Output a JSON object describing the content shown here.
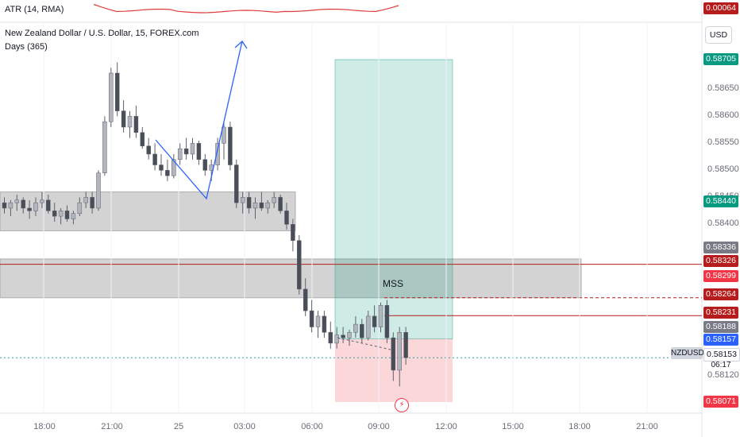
{
  "indicator": {
    "atr_label": "ATR (14, RMA)",
    "atr_value": "0.00064",
    "atr_color": "#e03e3e"
  },
  "header": {
    "symbol_title": "New Zealand Dollar / U.S. Dollar, 15, FOREX.com",
    "range_label": "Days (365)"
  },
  "currency_button": "USD",
  "annotation_mss": "MSS",
  "symbol_tag": "NZDUSD",
  "countdown": "06:17",
  "alert_icon": "lightning-icon",
  "price_axis": {
    "ticks": [
      "0.58650",
      "0.58600",
      "0.58550",
      "0.58500",
      "0.58450",
      "0.58400",
      "0.58120"
    ],
    "tags": [
      {
        "label": "0.00064",
        "bg": "#b71c1c",
        "fg": "#ffffff"
      },
      {
        "label": "0.58705",
        "bg": "#089981",
        "fg": "#ffffff"
      },
      {
        "label": "0.58440",
        "bg": "#089981",
        "fg": "#ffffff"
      },
      {
        "label": "0.58336",
        "bg": "#787b86",
        "fg": "#ffffff"
      },
      {
        "label": "0.58326",
        "bg": "#b71c1c",
        "fg": "#ffffff"
      },
      {
        "label": "0.58299",
        "bg": "#f23645",
        "fg": "#ffffff"
      },
      {
        "label": "0.58264",
        "bg": "#b71c1c",
        "fg": "#ffffff"
      },
      {
        "label": "0.58231",
        "bg": "#b71c1c",
        "fg": "#ffffff"
      },
      {
        "label": "0.58188",
        "bg": "#787b86",
        "fg": "#ffffff"
      },
      {
        "label": "0.58157",
        "bg": "#2962ff",
        "fg": "#ffffff"
      },
      {
        "label": "0.58153",
        "bg": "#ffffff",
        "fg": "#131722"
      },
      {
        "label": "0.58071",
        "bg": "#f23645",
        "fg": "#ffffff"
      }
    ]
  },
  "time_axis": [
    "18:00",
    "21:00",
    "25",
    "03:00",
    "06:00",
    "09:00",
    "12:00",
    "15:00",
    "18:00",
    "21:00"
  ],
  "chart_data": {
    "type": "candlestick",
    "symbol": "NZDUSD",
    "timeframe": "15",
    "y_range": [
      0.5805,
      0.5874
    ],
    "zones": [
      {
        "from": 0.58388,
        "to": 0.5846,
        "color": "#9e9e9e"
      },
      {
        "from": 0.58264,
        "to": 0.58336,
        "color": "#9e9e9e"
      }
    ],
    "position": {
      "entry": 0.58188,
      "target": 0.58705,
      "stop": 0.58071
    },
    "levels": [
      {
        "price": 0.58326,
        "style": "solid",
        "color": "#b71c1c"
      },
      {
        "price": 0.58264,
        "style": "dashed",
        "color": "#b71c1c"
      },
      {
        "price": 0.58231,
        "style": "solid",
        "color": "#b71c1c"
      },
      {
        "price": 0.58153,
        "style": "dotted",
        "color": "#26a69a"
      }
    ],
    "candles": [
      [
        0.5844,
        0.5845,
        0.5842,
        0.5843
      ],
      [
        0.5843,
        0.58445,
        0.58415,
        0.5844
      ],
      [
        0.5844,
        0.58455,
        0.58425,
        0.58445
      ],
      [
        0.58445,
        0.5845,
        0.5842,
        0.5843
      ],
      [
        0.5843,
        0.58445,
        0.5841,
        0.58425
      ],
      [
        0.58425,
        0.5845,
        0.58415,
        0.5844
      ],
      [
        0.5844,
        0.5846,
        0.5843,
        0.58445
      ],
      [
        0.58445,
        0.58455,
        0.5842,
        0.58425
      ],
      [
        0.58425,
        0.5844,
        0.58405,
        0.58415
      ],
      [
        0.58415,
        0.5843,
        0.584,
        0.58425
      ],
      [
        0.58425,
        0.58435,
        0.58405,
        0.5841
      ],
      [
        0.5841,
        0.58425,
        0.584,
        0.5842
      ],
      [
        0.5842,
        0.5845,
        0.58415,
        0.5844
      ],
      [
        0.5844,
        0.5846,
        0.5843,
        0.5845
      ],
      [
        0.5845,
        0.5846,
        0.5842,
        0.5843
      ],
      [
        0.5843,
        0.585,
        0.58425,
        0.58495
      ],
      [
        0.58495,
        0.586,
        0.5849,
        0.5859
      ],
      [
        0.5859,
        0.5869,
        0.5858,
        0.5868
      ],
      [
        0.5868,
        0.587,
        0.586,
        0.5861
      ],
      [
        0.5861,
        0.5863,
        0.5857,
        0.5858
      ],
      [
        0.5858,
        0.5861,
        0.5856,
        0.586
      ],
      [
        0.586,
        0.5862,
        0.5856,
        0.5857
      ],
      [
        0.5857,
        0.5858,
        0.5854,
        0.58545
      ],
      [
        0.58545,
        0.5856,
        0.5852,
        0.5853
      ],
      [
        0.5853,
        0.5855,
        0.585,
        0.5851
      ],
      [
        0.5851,
        0.5853,
        0.5849,
        0.585
      ],
      [
        0.585,
        0.5852,
        0.5848,
        0.5849
      ],
      [
        0.5849,
        0.5853,
        0.58485,
        0.5852
      ],
      [
        0.5852,
        0.5855,
        0.5851,
        0.5854
      ],
      [
        0.5854,
        0.5856,
        0.5852,
        0.5853
      ],
      [
        0.5853,
        0.5856,
        0.5852,
        0.5855
      ],
      [
        0.5855,
        0.58555,
        0.5851,
        0.5852
      ],
      [
        0.5852,
        0.5853,
        0.5849,
        0.585
      ],
      [
        0.585,
        0.5852,
        0.5848,
        0.5851
      ],
      [
        0.5851,
        0.5856,
        0.585,
        0.5855
      ],
      [
        0.5855,
        0.5859,
        0.5852,
        0.5858
      ],
      [
        0.5858,
        0.5859,
        0.585,
        0.5851
      ],
      [
        0.5851,
        0.5852,
        0.5843,
        0.5844
      ],
      [
        0.5844,
        0.5846,
        0.5842,
        0.5845
      ],
      [
        0.5845,
        0.5846,
        0.5842,
        0.5843
      ],
      [
        0.5843,
        0.5845,
        0.5841,
        0.5844
      ],
      [
        0.5844,
        0.5846,
        0.58425,
        0.5843
      ],
      [
        0.5843,
        0.58445,
        0.5842,
        0.5844
      ],
      [
        0.5844,
        0.5846,
        0.5843,
        0.5845
      ],
      [
        0.5845,
        0.58455,
        0.5842,
        0.58425
      ],
      [
        0.58425,
        0.5844,
        0.5839,
        0.584
      ],
      [
        0.584,
        0.5841,
        0.5835,
        0.5837
      ],
      [
        0.5837,
        0.5838,
        0.5827,
        0.5828
      ],
      [
        0.5828,
        0.583,
        0.5823,
        0.5824
      ],
      [
        0.5824,
        0.5826,
        0.582,
        0.5821
      ],
      [
        0.5821,
        0.5824,
        0.5819,
        0.5823
      ],
      [
        0.5823,
        0.5824,
        0.5819,
        0.582
      ],
      [
        0.582,
        0.5822,
        0.5817,
        0.5818
      ],
      [
        0.5818,
        0.5821,
        0.5817,
        0.58195
      ],
      [
        0.58195,
        0.5821,
        0.5818,
        0.5819
      ],
      [
        0.5819,
        0.58205,
        0.58175,
        0.582
      ],
      [
        0.582,
        0.5823,
        0.5819,
        0.58215
      ],
      [
        0.58215,
        0.58225,
        0.5818,
        0.5819
      ],
      [
        0.5819,
        0.5824,
        0.58185,
        0.5823
      ],
      [
        0.5823,
        0.5825,
        0.582,
        0.5821
      ],
      [
        0.5821,
        0.58255,
        0.582,
        0.5825
      ],
      [
        0.5825,
        0.5826,
        0.5818,
        0.5819
      ],
      [
        0.5819,
        0.582,
        0.5811,
        0.5813
      ],
      [
        0.5813,
        0.5821,
        0.581,
        0.582
      ],
      [
        0.582,
        0.5821,
        0.5814,
        0.58153
      ]
    ]
  }
}
